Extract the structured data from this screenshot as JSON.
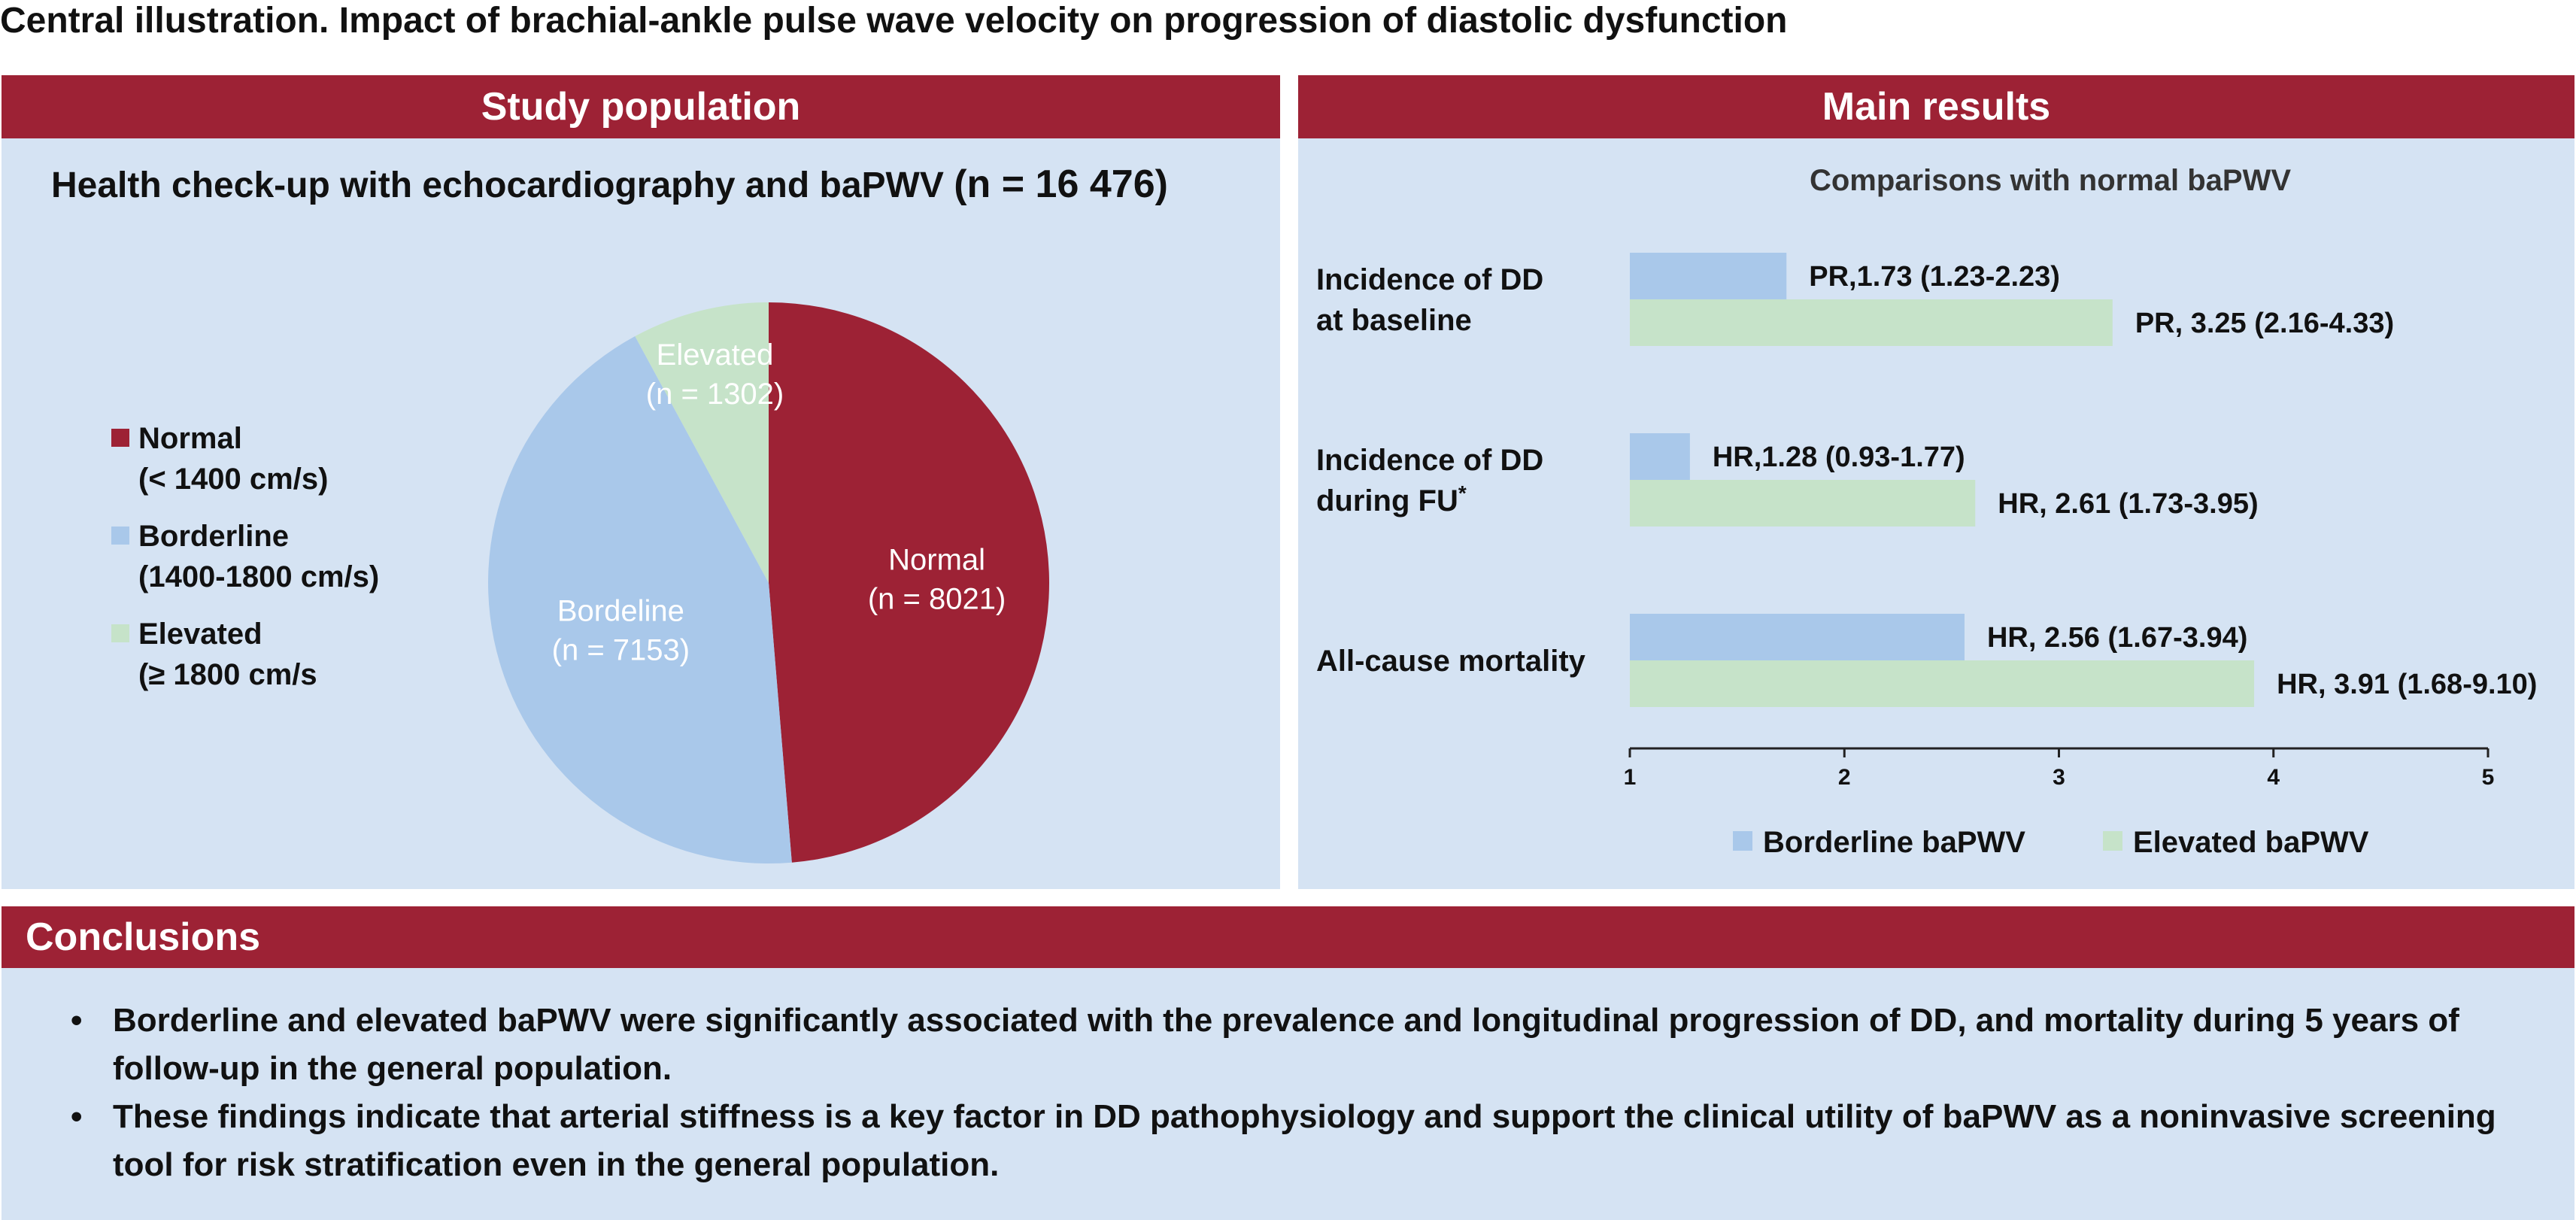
{
  "title": "Central illustration. Impact of brachial-ankle pulse wave velocity on progression of diastolic dysfunction",
  "left_panel": {
    "header": "Study population",
    "heading": "Health check-up with echocardiography and baPWV",
    "heading_n": "(n = 16 476)",
    "legend": [
      {
        "label": "Normal",
        "range": "(< 1400 cm/s)",
        "color": "#9d2235"
      },
      {
        "label": "Borderline",
        "range": "(1400-1800 cm/s)",
        "color": "#a9c8ea"
      },
      {
        "label": "Elevated",
        "range": "(≥ 1800 cm/s",
        "color": "#c6e3c9"
      }
    ]
  },
  "right_panel": {
    "header": "Main results",
    "subtitle": "Comparisons with normal baPWV",
    "legend": [
      {
        "label": "Borderline baPWV",
        "color": "#a9c8ea"
      },
      {
        "label": "Elevated baPWV",
        "color": "#c6e3c9"
      }
    ]
  },
  "conclusions": {
    "header": "Conclusions",
    "bullet": "•",
    "items": [
      "Borderline and elevated baPWV were significantly associated with the prevalence and longitudinal progression of DD, and mortality during 5 years of follow-up in the general population.",
      "These findings indicate that arterial stiffness is a key factor in DD pathophysiology and support the clinical utility of baPWV as a noninvasive screening tool for risk stratification even in the general population."
    ]
  },
  "chart_data": [
    {
      "type": "pie",
      "slices": [
        {
          "label": "Normal",
          "sublabel": "(n = 8021)",
          "value": 8021,
          "color": "#9d2235"
        },
        {
          "label": "Bordeline",
          "sublabel": "(n = 7153)",
          "value": 7153,
          "color": "#a9c8ea"
        },
        {
          "label": "Elevated",
          "sublabel": "(n = 1302)",
          "value": 1302,
          "color": "#c6e3c9"
        }
      ]
    },
    {
      "type": "bar",
      "orientation": "horizontal",
      "categories": [
        {
          "lines": [
            "Incidence of DD",
            "at baseline"
          ],
          "sup": ""
        },
        {
          "lines": [
            "Incidence of DD",
            "during FU"
          ],
          "sup": "*"
        },
        {
          "lines": [
            "All-cause mortality"
          ],
          "sup": ""
        }
      ],
      "series": [
        {
          "name": "Borderline baPWV",
          "color": "#a9c8ea",
          "values": [
            1.73,
            1.28,
            2.56
          ],
          "labels": [
            "PR,1.73 (1.23-2.23)",
            "HR,1.28 (0.93-1.77)",
            "HR, 2.56 (1.67-3.94)"
          ]
        },
        {
          "name": "Elevated baPWV",
          "color": "#c6e3c9",
          "values": [
            3.25,
            2.61,
            3.91
          ],
          "labels": [
            "PR, 3.25 (2.16-4.33)",
            "HR, 2.61 (1.73-3.95)",
            "HR, 3.91 (1.68-9.10)"
          ]
        }
      ],
      "xlim": [
        1,
        5
      ],
      "xticks": [
        1,
        2,
        3,
        4,
        5
      ],
      "grid": false,
      "legend_position": "bottom"
    }
  ]
}
